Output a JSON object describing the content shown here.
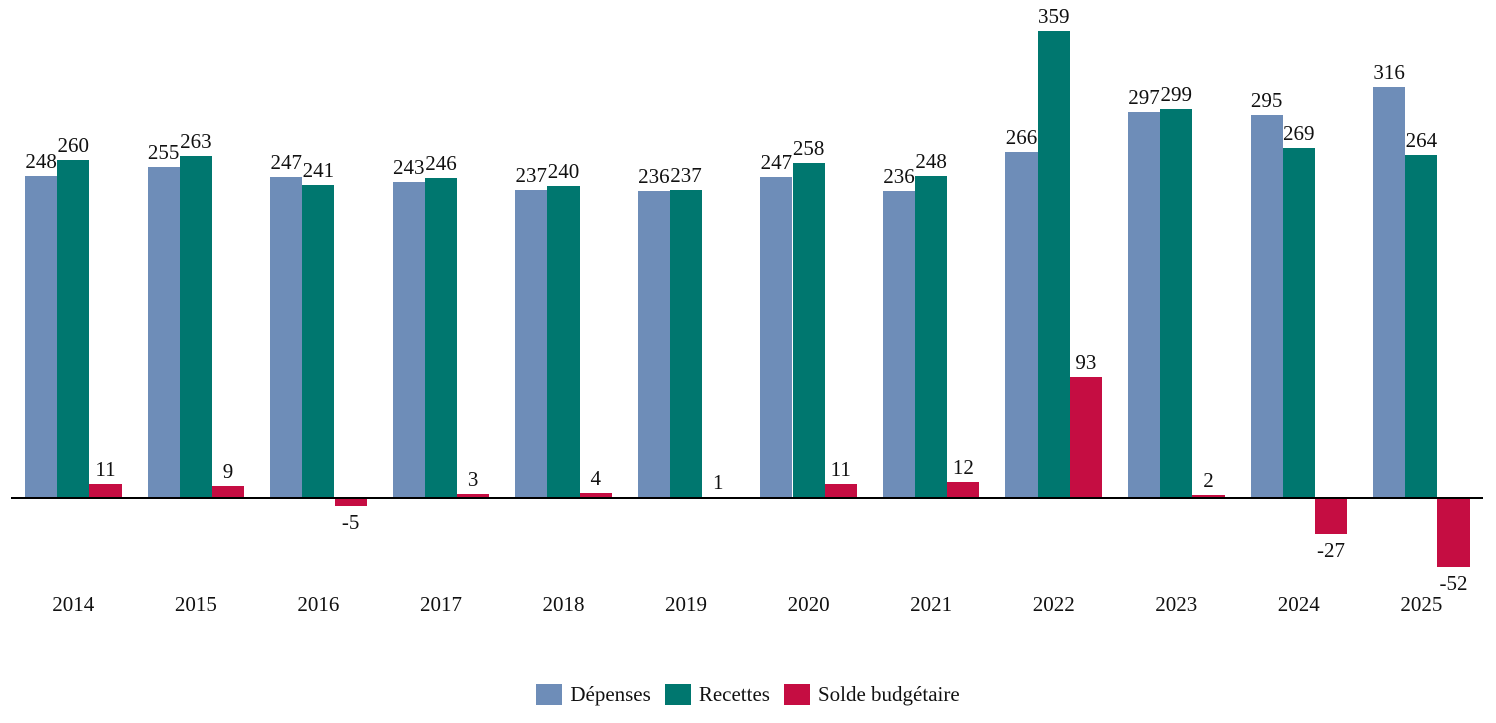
{
  "chart_data": {
    "type": "bar",
    "title": "",
    "xlabel": "",
    "ylabel": "",
    "categories": [
      "2014",
      "2015",
      "2016",
      "2017",
      "2018",
      "2019",
      "2020",
      "2021",
      "2022",
      "2023",
      "2024",
      "2025"
    ],
    "series": [
      {
        "name": "Dépenses",
        "color": "#6E8DB8",
        "values": [
          248,
          255,
          247,
          243,
          237,
          236,
          247,
          236,
          266,
          297,
          295,
          316
        ]
      },
      {
        "name": "Recettes",
        "color": "#00776F",
        "values": [
          260,
          263,
          241,
          246,
          240,
          237,
          258,
          248,
          359,
          299,
          269,
          264
        ]
      },
      {
        "name": "Solde budgétaire",
        "color": "#C50D42",
        "values": [
          11,
          9,
          -5,
          3,
          4,
          1,
          11,
          12,
          93,
          2,
          -27,
          -52
        ]
      }
    ],
    "data_labels": true,
    "ylim": [
      -52,
      359
    ],
    "grid": false,
    "legend_position": "bottom",
    "axis_color": "#000000",
    "label_color": "#111111",
    "background": "#ffffff"
  }
}
